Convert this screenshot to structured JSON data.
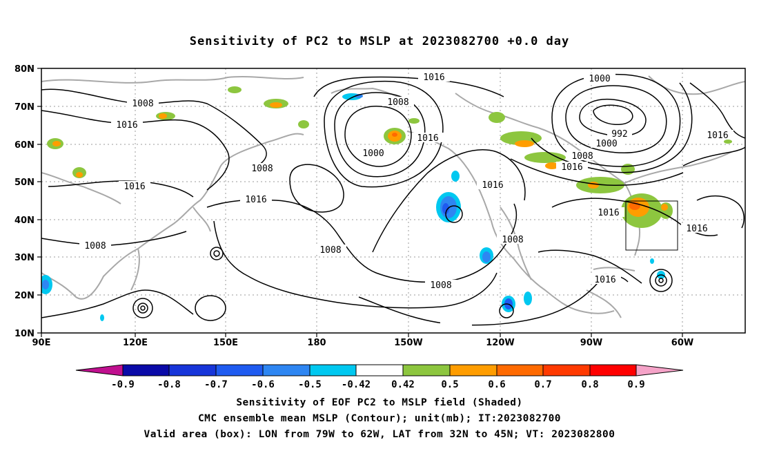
{
  "title": "Sensitivity of PC2 to MSLP at 2023082700 +0.0 day",
  "lat_labels": [
    "80N",
    "70N",
    "60N",
    "50N",
    "40N",
    "30N",
    "20N",
    "10N"
  ],
  "lon_labels": [
    "90E",
    "120E",
    "150E",
    "180",
    "150W",
    "120W",
    "90W",
    "60W"
  ],
  "contour_labels": [
    "1016",
    "1000",
    "1008",
    "1008",
    "1016",
    "992",
    "1000",
    "1016",
    "1008",
    "1000",
    "1016",
    "1008",
    "1016",
    "1016",
    "1016",
    "1016",
    "1016",
    "1008",
    "1008",
    "1016",
    "1008",
    "1016",
    "1008"
  ],
  "colorbar": {
    "labels": [
      "-0.9",
      "-0.8",
      "-0.7",
      "-0.6",
      "-0.5",
      "-0.42",
      "0.42",
      "0.5",
      "0.6",
      "0.7",
      "0.8",
      "0.9"
    ],
    "colors": [
      "#c0108f",
      "#0a0aa8",
      "#1735d9",
      "#1f5bf0",
      "#2e86f2",
      "#00c8f0",
      "#ffffff",
      "#8dc63f",
      "#ff9d00",
      "#ff6a00",
      "#ff3a00",
      "#ff0000",
      "#f5a3c8"
    ]
  },
  "captions": [
    "Sensitivity of EOF PC2 to MSLP field (Shaded)",
    "CMC ensemble mean MSLP (Contour); unit(mb); IT:2023082700",
    "Valid area (box): LON from 79W to 62W, LAT from 32N to 45N; VT: 2023082800"
  ],
  "valid_box": {
    "lon_from": "79W",
    "lon_to": "62W",
    "lat_from": "32N",
    "lat_to": "45N"
  }
}
